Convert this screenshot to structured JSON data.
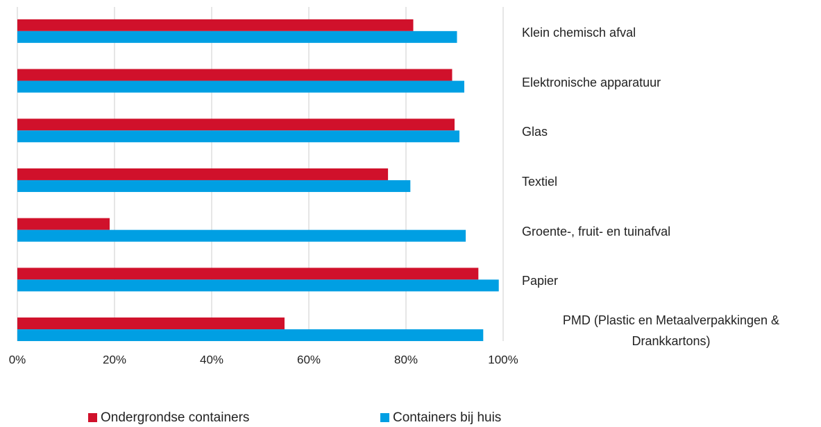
{
  "chart_data": {
    "type": "barh",
    "categories": [
      "Klein chemisch afval",
      "Elektronische apparatuur",
      "Glas",
      "Textiel",
      "Groente-, fruit- en tuinafval",
      "Papier",
      "PMD (Plastic en Metaalverpakkingen & Drankkartons)"
    ],
    "series": [
      {
        "name": "Ondergrondse containers",
        "color": "#d0112b",
        "values": [
          81.5,
          89.5,
          90,
          76.3,
          19,
          94.9,
          55
        ]
      },
      {
        "name": "Containers bij huis",
        "color": "#009fe3",
        "values": [
          90.5,
          92,
          91,
          80.9,
          92.3,
          99.1,
          95.9
        ]
      }
    ],
    "xlim": [
      0,
      100
    ],
    "xticks": [
      {
        "value": 0,
        "label": "0%"
      },
      {
        "value": 20,
        "label": "20%"
      },
      {
        "value": 40,
        "label": "40%"
      },
      {
        "value": 60,
        "label": "60%"
      },
      {
        "value": 80,
        "label": "80%"
      },
      {
        "value": 100,
        "label": "100%"
      }
    ],
    "grid": true,
    "legend": "bottom"
  }
}
